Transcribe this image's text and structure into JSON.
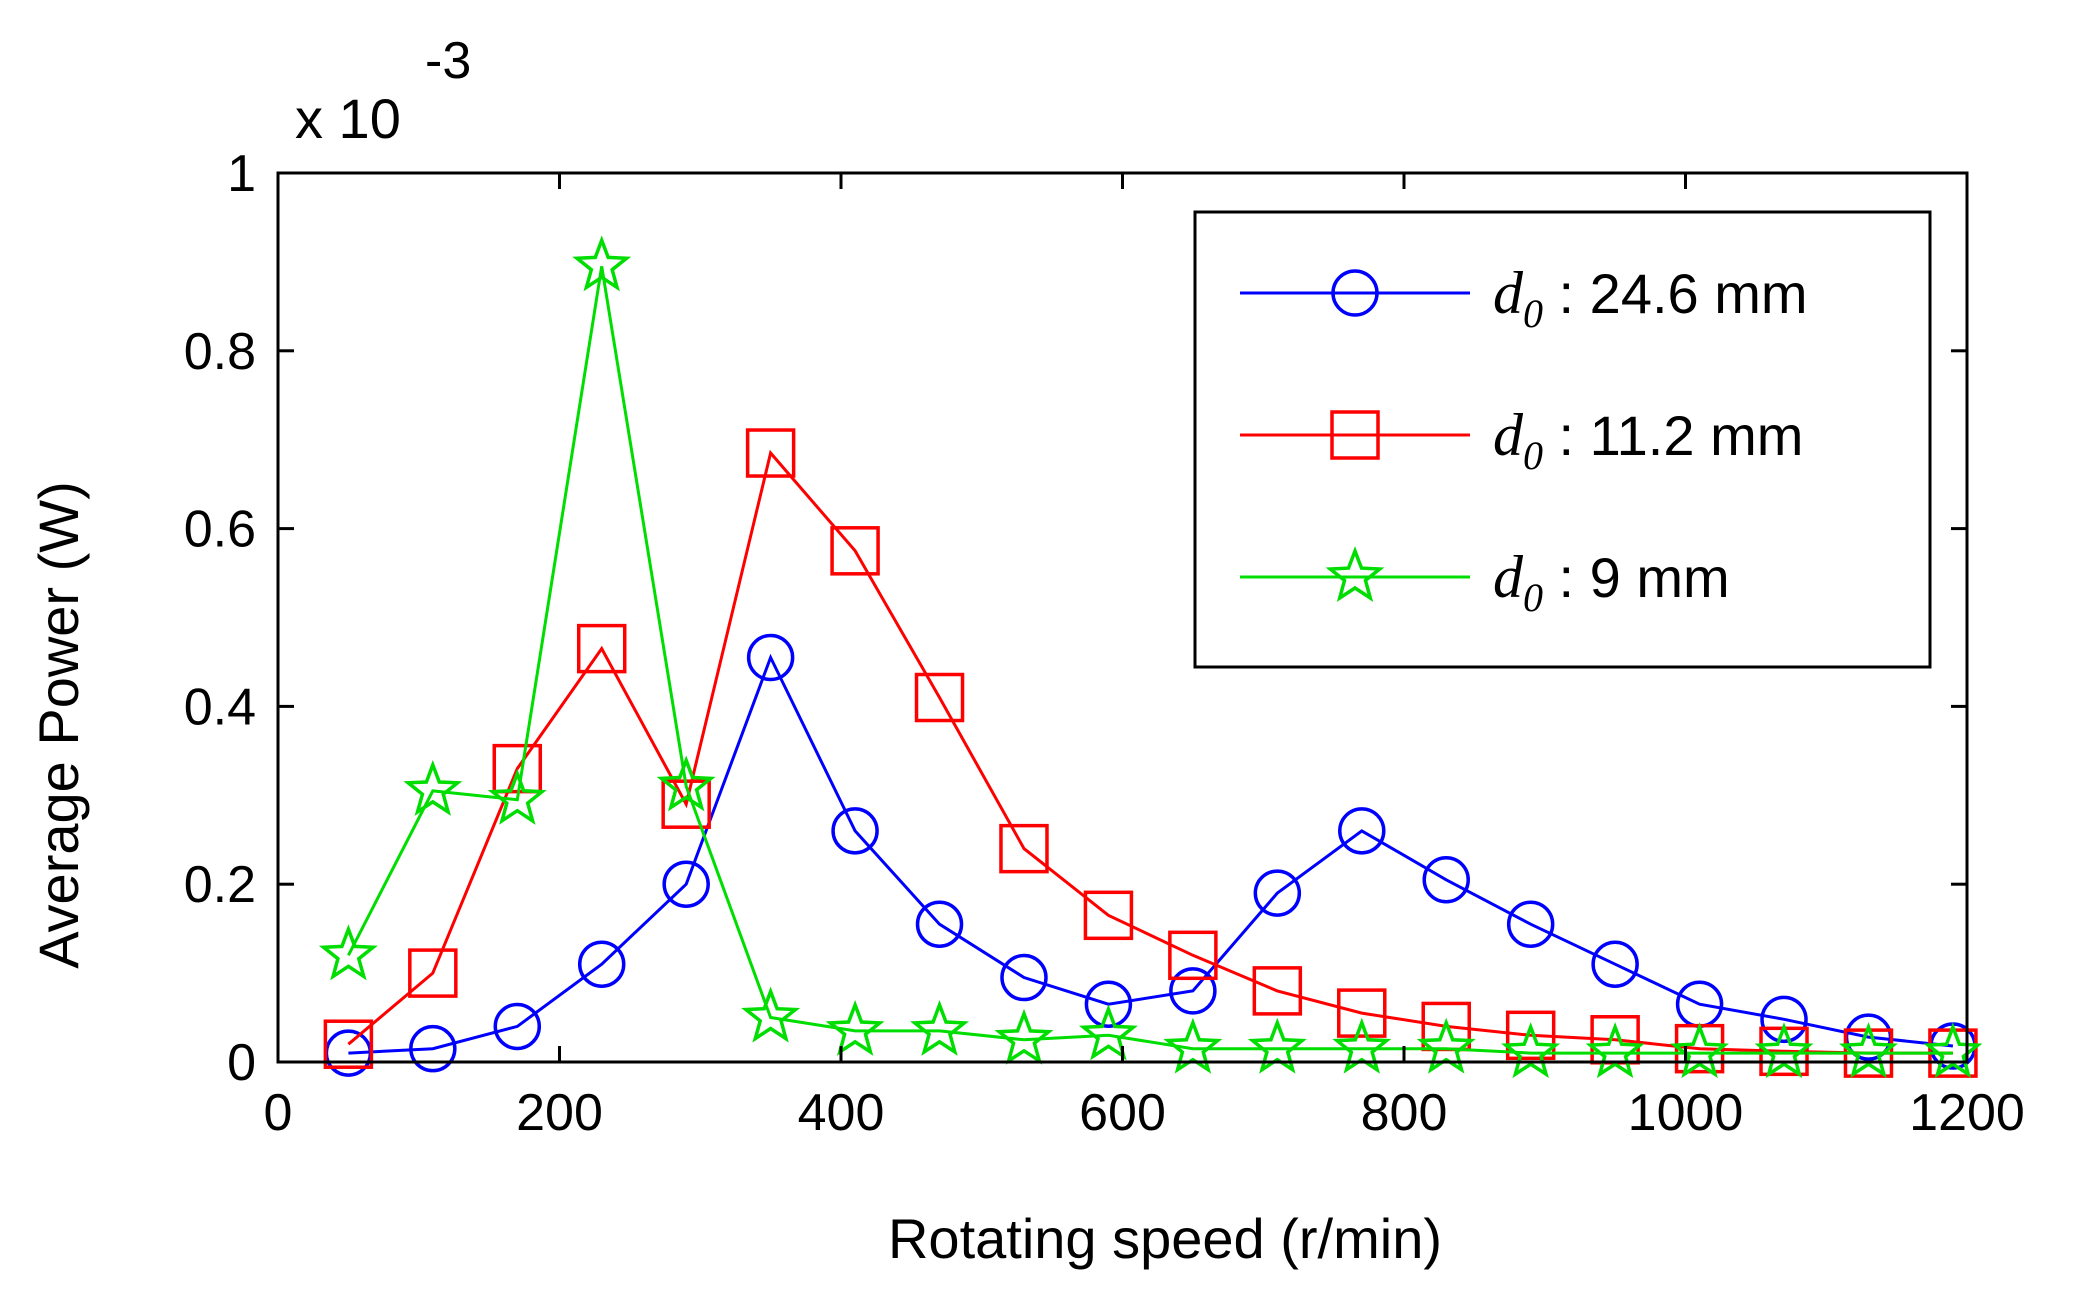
{
  "chart_data": {
    "type": "line",
    "title": "",
    "xlabel": "Rotating speed (r/min)",
    "ylabel": "Average Power (W)",
    "y_multiplier": {
      "base": "x 10",
      "exponent": "-3"
    },
    "xlim": [
      0,
      1200
    ],
    "ylim": [
      0,
      1
    ],
    "xticks": [
      0,
      200,
      400,
      600,
      800,
      1000,
      1200
    ],
    "xtick_labels": [
      "0",
      "200",
      "400",
      "600",
      "800",
      "1000",
      "1200"
    ],
    "yticks": [
      0,
      0.2,
      0.4,
      0.6,
      0.8,
      1
    ],
    "ytick_labels": [
      "0",
      "0.2",
      "0.4",
      "0.6",
      "0.8",
      "1"
    ],
    "grid": false,
    "legend_position": "top-right",
    "x": [
      50,
      110,
      170,
      230,
      290,
      350,
      410,
      470,
      530,
      590,
      650,
      710,
      770,
      830,
      890,
      950,
      1010,
      1070,
      1130,
      1190
    ],
    "series": [
      {
        "name": "d0 : 24.6 mm",
        "legend_symbol": "d",
        "legend_subscript": "0",
        "legend_value": " : 24.6 mm",
        "color": "#0000ff",
        "marker": "circle",
        "values": [
          0.01,
          0.015,
          0.04,
          0.11,
          0.2,
          0.455,
          0.26,
          0.155,
          0.095,
          0.065,
          0.08,
          0.19,
          0.26,
          0.205,
          0.155,
          0.11,
          0.065,
          0.048,
          0.028,
          0.018
        ]
      },
      {
        "name": "d0 : 11.2 mm",
        "legend_symbol": "d",
        "legend_subscript": "0",
        "legend_value": " : 11.2 mm",
        "color": "#ff0000",
        "marker": "square",
        "values": [
          0.02,
          0.1,
          0.33,
          0.465,
          0.29,
          0.685,
          0.575,
          0.41,
          0.24,
          0.165,
          0.12,
          0.08,
          0.055,
          0.04,
          0.03,
          0.025,
          0.015,
          0.012,
          0.01,
          0.01
        ]
      },
      {
        "name": "d0 : 9 mm",
        "legend_symbol": "d",
        "legend_subscript": "0",
        "legend_value": " : 9 mm",
        "color": "#00dd00",
        "marker": "star",
        "values": [
          0.12,
          0.305,
          0.295,
          0.895,
          0.31,
          0.05,
          0.035,
          0.035,
          0.025,
          0.03,
          0.015,
          0.015,
          0.015,
          0.015,
          0.01,
          0.01,
          0.01,
          0.01,
          0.01,
          0.01
        ]
      }
    ]
  }
}
